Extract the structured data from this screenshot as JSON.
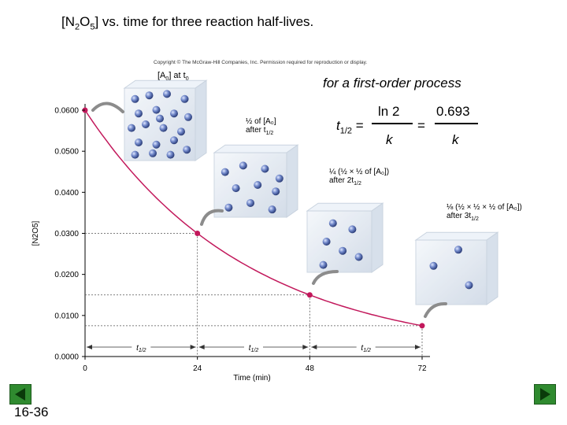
{
  "slide": {
    "title_main": "[N",
    "title_sub1": "2",
    "title_mid": "O",
    "title_sub2": "5",
    "title_rest": "] vs. time for three reaction half-lives.",
    "copyright": "Copyright © The McGraw-Hill Companies, Inc. Permission required for reproduction or display.",
    "number": "16-36"
  },
  "equation": {
    "caption": "for a first-order process",
    "lhs": "t",
    "lhs_sub": "1/2",
    "equals": "=",
    "num1": "ln 2",
    "den1": "k",
    "num2": "0.693",
    "den2": "k"
  },
  "annotations": {
    "a0": "[A",
    "a0_sub": "0",
    "a0_at": "] at t",
    "a0_at_sub": "0",
    "half": "½ of [A₀]",
    "half_after": "after t",
    "half_after_sub": "1/2",
    "quarter": "¼ (½ × ½ of [A₀])",
    "quarter_after": "after 2t",
    "quarter_after_sub": "1/2",
    "eighth": "⅛ (½ × ½ × ½ of [A₀])",
    "eighth_after": "after 3t",
    "eighth_after_sub": "1/2"
  },
  "chart_data": {
    "type": "line",
    "xlabel": "Time (min)",
    "ylabel": "[N2O5]",
    "x_ticks": [
      "0",
      "24",
      "48",
      "72"
    ],
    "y_ticks": [
      "0.0000",
      "0.0100",
      "0.0200",
      "0.0300",
      "0.0400",
      "0.0500",
      "0.0600"
    ],
    "xlim": [
      0,
      72
    ],
    "ylim": [
      0,
      0.06
    ],
    "points": [
      {
        "x": 0,
        "y": 0.06
      },
      {
        "x": 24,
        "y": 0.03
      },
      {
        "x": 48,
        "y": 0.015
      },
      {
        "x": 72,
        "y": 0.0075
      }
    ],
    "half_life_label": "t1/2",
    "curve_color": "#c2185b",
    "grid": false
  }
}
